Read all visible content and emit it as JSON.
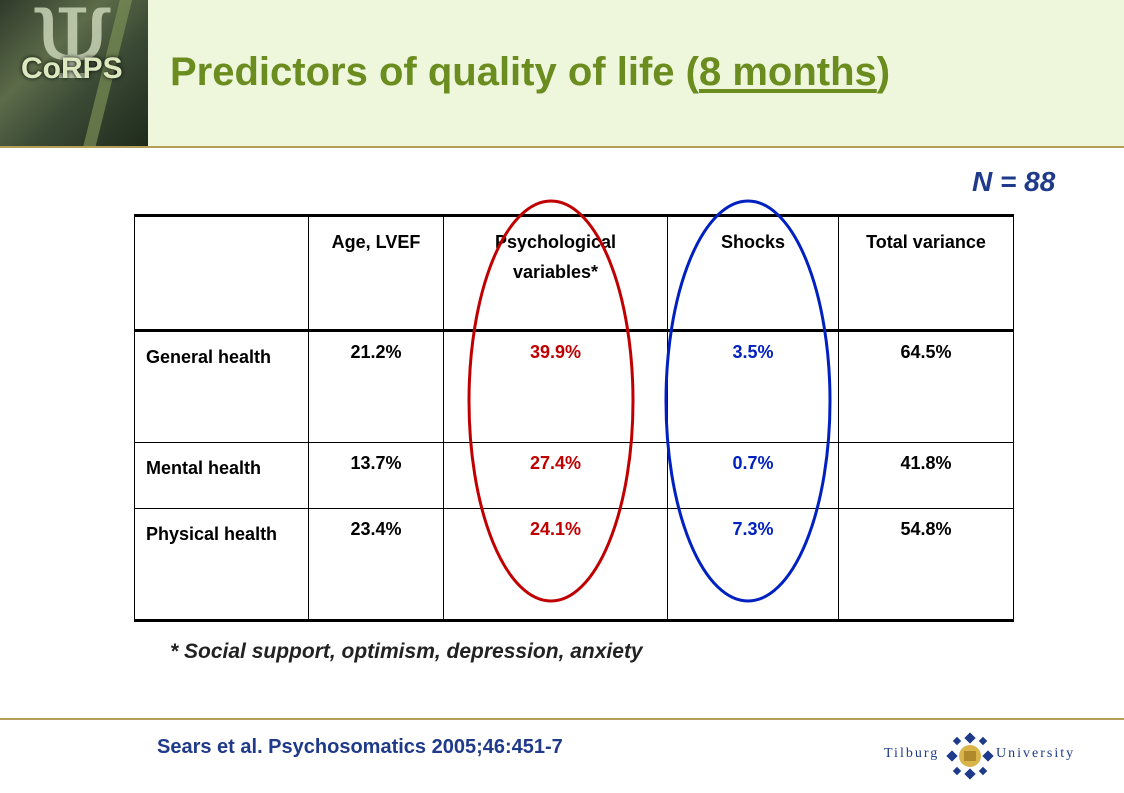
{
  "header": {
    "logo_text": "CoRPS",
    "title_prefix": "Predictors of quality of life (",
    "title_underlined": "8 months",
    "title_suffix": ")"
  },
  "sample_size": "N = 88",
  "table": {
    "columns": [
      "",
      "Age, LVEF",
      "Psychological variables*",
      "Shocks",
      "Total variance"
    ],
    "rows": [
      {
        "label": "General health",
        "values": [
          "21.2%",
          "39.9%",
          "3.5%",
          "64.5%"
        ]
      },
      {
        "label": "Mental health",
        "values": [
          "13.7%",
          "27.4%",
          "0.7%",
          "41.8%"
        ]
      },
      {
        "label": "Physical health",
        "values": [
          "23.4%",
          "24.1%",
          "7.3%",
          "54.8%"
        ]
      }
    ]
  },
  "footnote": "* Social support, optimism, depression, anxiety",
  "citation": "Sears et al. Psychosomatics 2005;46:451-7",
  "university": {
    "left": "Tilburg",
    "right": "University"
  },
  "colors": {
    "title": "#6b8c1e",
    "header_bg": "#eef6dc",
    "psych_highlight": "#c00000",
    "shocks_highlight": "#0020c0",
    "navy": "#1f3a8a",
    "gold": "#b59f57"
  }
}
